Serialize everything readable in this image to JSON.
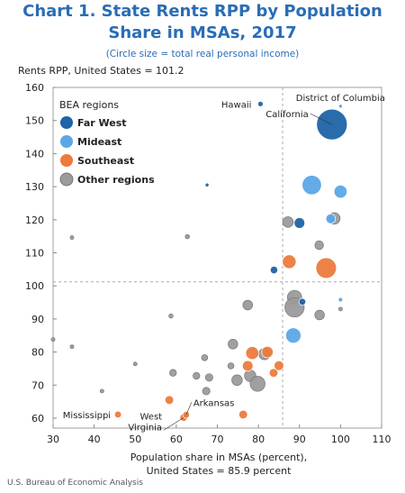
{
  "chart_data": {
    "type": "bubble",
    "title": [
      "Chart 1. State Rents RPP by Population",
      "Share in MSAs, 2017"
    ],
    "subtitle": "(Circle size = total real personal income)",
    "hline_label": "Rents RPP, United States = 101.2",
    "hline": 101.2,
    "vline": 85.9,
    "x_label": [
      "Population share in MSAs (percent),",
      "United States = 85.9 percent"
    ],
    "source": "U.S. Bureau of Economic Analysis",
    "legend_title": "BEA regions",
    "legend": "upper left",
    "xlim": [
      30,
      110
    ],
    "xticks": [
      30,
      40,
      50,
      60,
      70,
      80,
      90,
      100,
      110
    ],
    "ylim": [
      57,
      160
    ],
    "yticks": [
      60,
      70,
      80,
      90,
      100,
      110,
      120,
      130,
      140,
      150,
      160
    ],
    "series": [
      {
        "name": "Far West",
        "color": "#1f63a8",
        "x": [
          80.5,
          97.9,
          67.5,
          83.8,
          90,
          90.7
        ],
        "values": [
          155,
          148.8,
          130.5,
          104.8,
          119,
          95.2
        ],
        "sizes": [
          3,
          100,
          1.5,
          6,
          12,
          5
        ],
        "point_labels": [
          "Hawaii",
          "California",
          null,
          null,
          null,
          null
        ]
      },
      {
        "name": "Mideast",
        "color": "#5ca6e8",
        "x": [
          100,
          93,
          100,
          97.6,
          100,
          88.5
        ],
        "values": [
          154.3,
          130.5,
          128.5,
          120.3,
          95.8,
          85
        ],
        "sizes": [
          1.5,
          40,
          18,
          10,
          2,
          25
        ],
        "point_labels": [
          "District of Columbia",
          null,
          null,
          null,
          null,
          null
        ]
      },
      {
        "name": "Southeast",
        "color": "#ec7b3e",
        "x": [
          96.5,
          87.5,
          78.5,
          77.4,
          82.2,
          83.7,
          85,
          58.3,
          76.3,
          61.8,
          45.8,
          62.4
        ],
        "values": [
          105.4,
          107.3,
          79.7,
          75.8,
          80,
          73.7,
          75.9,
          65.5,
          61.1,
          60.2,
          61.1,
          61
        ],
        "sizes": [
          45,
          20,
          18,
          12,
          14,
          8,
          10,
          8,
          8,
          6,
          5,
          5
        ],
        "point_labels": [
          null,
          null,
          null,
          null,
          null,
          null,
          null,
          null,
          null,
          "West\nVirginia",
          "Mississippi",
          "Arkansas"
        ]
      },
      {
        "name": "Other regions",
        "color": "#9b9b9b",
        "x": [
          98.5,
          87.2,
          94.8,
          62.7,
          34.6,
          88.8,
          88.8,
          94.9,
          100,
          77.4,
          58.7,
          30,
          34.6,
          73.8,
          81.5,
          66.9,
          50,
          73.3,
          59.2,
          64.9,
          68,
          78,
          79.8,
          74.8,
          67.3,
          41.9
        ],
        "values": [
          120.4,
          119.3,
          112.3,
          114.9,
          114.6,
          96.5,
          93.5,
          91.2,
          93,
          94.2,
          90.9,
          83.8,
          81.6,
          82.4,
          79.4,
          78.3,
          76.4,
          75.8,
          73.7,
          72.8,
          72.3,
          72.8,
          70.4,
          71.5,
          68.2,
          68.2
        ],
        "sizes": [
          14,
          12,
          8,
          2,
          1.5,
          22,
          40,
          10,
          1.5,
          10,
          2,
          1.5,
          1.5,
          10,
          14,
          4,
          1.5,
          4,
          5,
          5,
          6,
          14,
          24,
          12,
          6,
          1.5
        ]
      }
    ]
  }
}
